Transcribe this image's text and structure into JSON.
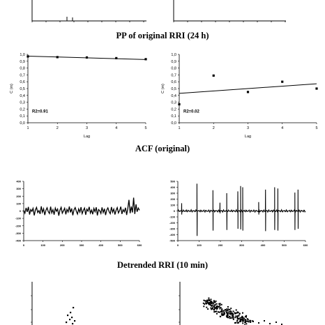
{
  "captions": {
    "pp": "PP of original RRI  (24 h)",
    "acf": "ACF (original)",
    "detrended": "Detrended RRI (10 min)"
  },
  "colors": {
    "ink": "#000000",
    "background": "#ffffff"
  },
  "chart_data": [
    {
      "type": "scatter",
      "panel": "ACF left",
      "xlabel": "Lag",
      "ylabel": "C (m)",
      "xlim": [
        1,
        5
      ],
      "ylim": [
        0,
        1
      ],
      "xticks": [
        "1",
        "2",
        "3",
        "4",
        "5"
      ],
      "yticks": [
        "0,0",
        "0,1",
        "0,2",
        "0,3",
        "0,4",
        "0,5",
        "0,6",
        "0,7",
        "0,8",
        "0,9",
        "1,0"
      ],
      "x": [
        1,
        2,
        3,
        4,
        5
      ],
      "y": [
        0.97,
        0.96,
        0.955,
        0.945,
        0.93
      ],
      "trendline": [
        [
          1,
          0.975
        ],
        [
          5,
          0.925
        ]
      ],
      "annotation": "R2=0.91"
    },
    {
      "type": "scatter",
      "panel": "ACF right",
      "xlabel": "Lag",
      "ylabel": "C (m)",
      "xlim": [
        1,
        5
      ],
      "ylim": [
        0,
        1
      ],
      "xticks": [
        "1",
        "2",
        "3",
        "4",
        "5"
      ],
      "yticks": [
        "0,0",
        "0,1",
        "0,2",
        "0,3",
        "0,4",
        "0,5",
        "0,6",
        "0,7",
        "0,8",
        "0,9",
        "1,0"
      ],
      "x": [
        1,
        2,
        3,
        4,
        5
      ],
      "y": [
        0.27,
        0.69,
        0.45,
        0.6,
        0.5
      ],
      "trendline": [
        [
          1,
          0.43
        ],
        [
          5,
          0.57
        ]
      ],
      "annotation": "R2=0.02"
    },
    {
      "type": "line",
      "panel": "Detrended left",
      "xlim": [
        0,
        600
      ],
      "ylim": [
        -400,
        400
      ],
      "xticks": [
        "0",
        "100",
        "200",
        "300",
        "400",
        "500",
        "600"
      ],
      "yticks": [
        "-400",
        "-300",
        "-200",
        "-100",
        "0",
        "100",
        "200",
        "300",
        "400"
      ],
      "series": [
        {
          "values": [
            8,
            -30,
            42,
            -12,
            55,
            -48,
            20,
            -5,
            36,
            -60,
            14,
            48,
            -22,
            6,
            -40,
            62,
            -18,
            30,
            -55,
            10,
            44,
            -8,
            -35,
            58,
            -26,
            18,
            -50,
            40,
            -4,
            26,
            -64,
            12,
            50,
            -30,
            2,
            38,
            -46,
            22,
            -14,
            60,
            -20,
            34,
            -58,
            16,
            46,
            -6,
            -42,
            28,
            -16,
            52,
            -36,
            8,
            40,
            -52,
            24,
            -2,
            56,
            -28,
            12,
            -44,
            36,
            -10,
            50,
            -60,
            20,
            4,
            -34,
            48,
            -22,
            30,
            -56,
            14,
            42,
            -8,
            -38,
            54,
            -18,
            26,
            -48,
            10,
            46,
            -26,
            6,
            58,
            -40,
            18,
            -12,
            44,
            -54,
            32,
            150,
            -30,
            60,
            -20,
            180,
            -40,
            90,
            -10,
            40,
            10
          ]
        }
      ]
    },
    {
      "type": "line",
      "panel": "Detrended right",
      "xlim": [
        0,
        600
      ],
      "ylim": [
        -500,
        500
      ],
      "xticks": [
        "0",
        "100",
        "200",
        "300",
        "400",
        "500",
        "600"
      ],
      "yticks": [
        "-500",
        "-400",
        "-300",
        "-200",
        "-100",
        "0",
        "100",
        "200",
        "300",
        "400",
        "500"
      ],
      "baseline_noise": 20,
      "spikes": [
        {
          "x": 18,
          "hi": 130,
          "lo": -60
        },
        {
          "x": 90,
          "hi": 460,
          "lo": -420
        },
        {
          "x": 165,
          "hi": 350,
          "lo": -330
        },
        {
          "x": 198,
          "hi": 140,
          "lo": -40
        },
        {
          "x": 230,
          "hi": 300,
          "lo": -320
        },
        {
          "x": 282,
          "hi": 330,
          "lo": -300
        },
        {
          "x": 295,
          "hi": 420,
          "lo": -310
        },
        {
          "x": 305,
          "hi": 400,
          "lo": -330
        },
        {
          "x": 380,
          "hi": 150,
          "lo": -60
        },
        {
          "x": 412,
          "hi": 360,
          "lo": -340
        },
        {
          "x": 455,
          "hi": 400,
          "lo": -320
        },
        {
          "x": 470,
          "hi": 380,
          "lo": -330
        },
        {
          "x": 550,
          "hi": 310,
          "lo": -320
        },
        {
          "x": 565,
          "hi": 360,
          "lo": -300
        }
      ]
    }
  ]
}
